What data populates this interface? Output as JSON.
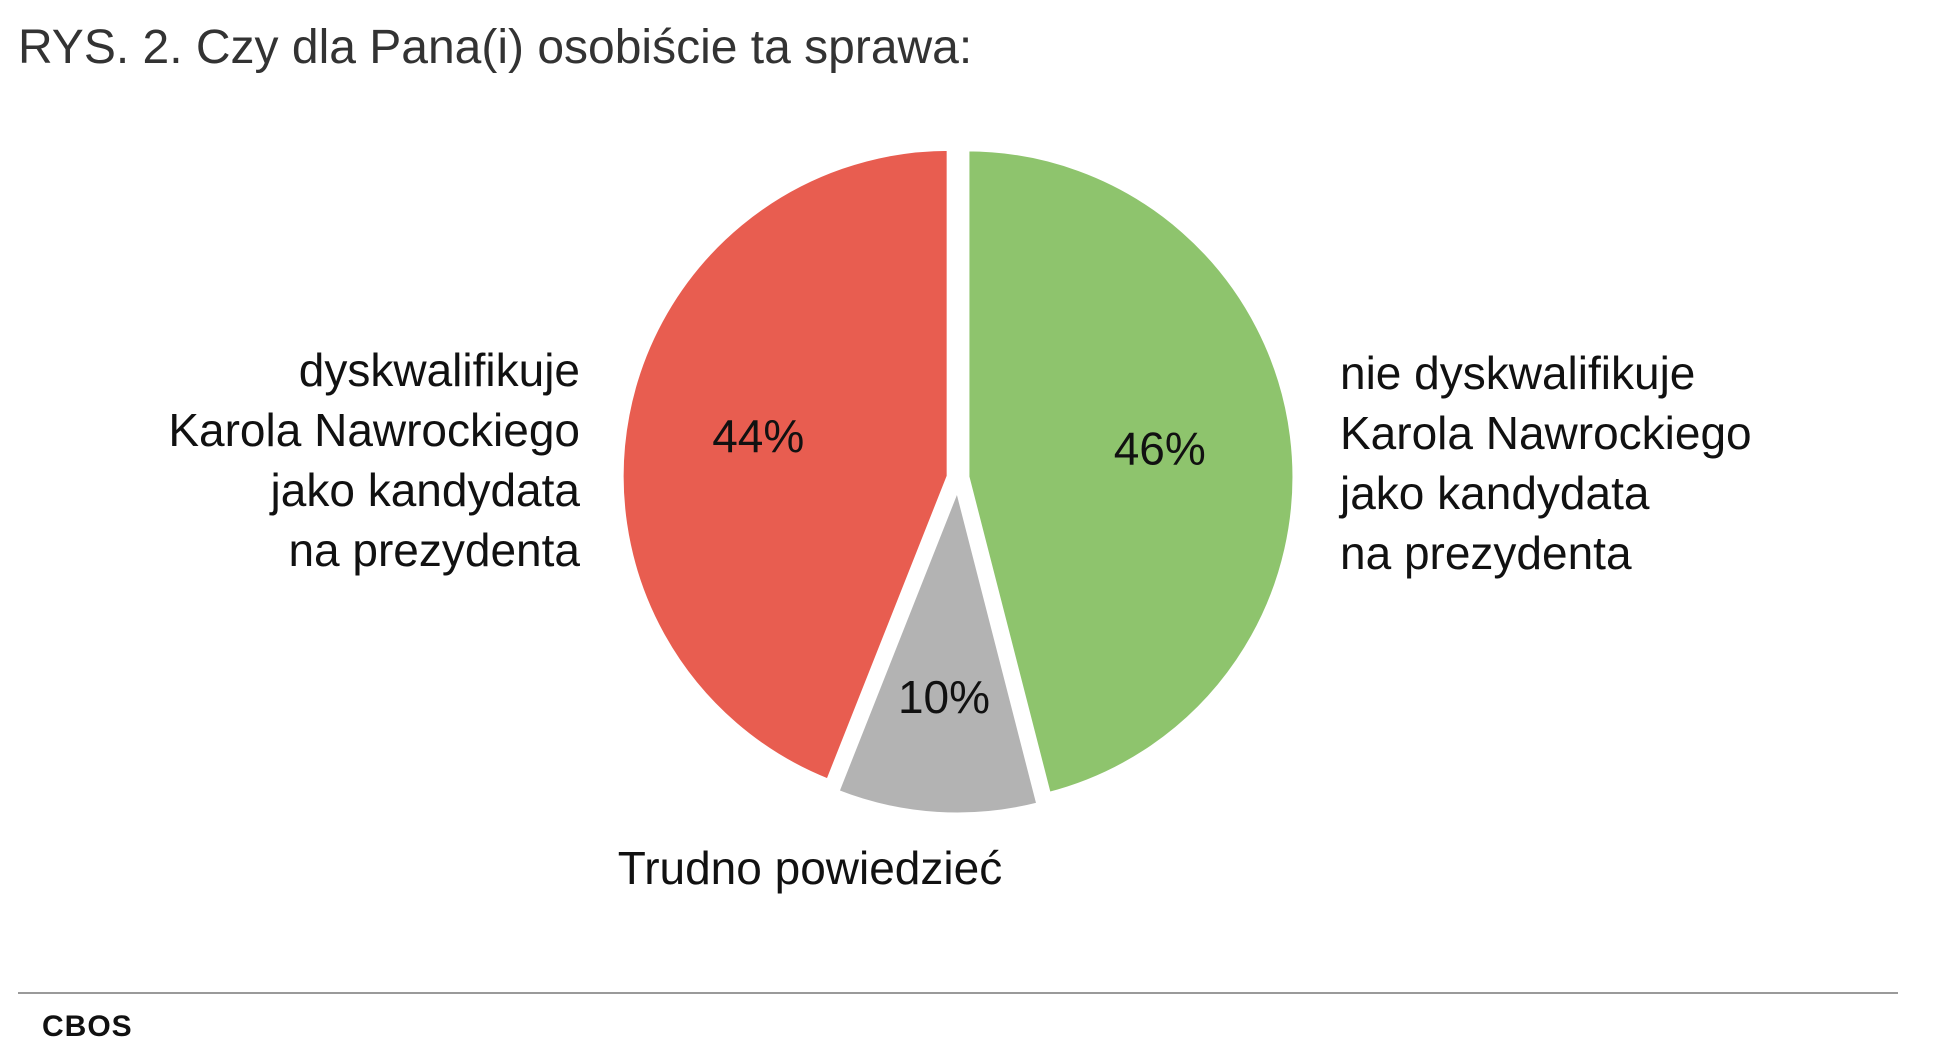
{
  "header": {
    "title": "RYS. 2. Czy dla Pana(i) osobiście ta sprawa:"
  },
  "chart_data": {
    "type": "pie",
    "title": "RYS. 2. Czy dla Pana(i) osobiście ta sprawa:",
    "slices": [
      {
        "id": "nie-dyskwalifikuje",
        "label_lines": [
          "nie dyskwalifikuje",
          "Karola Nawrockiego",
          "jako kandydata",
          "na prezydenta"
        ],
        "value": 46,
        "value_label": "46%",
        "color": "#8EC46D"
      },
      {
        "id": "trudno",
        "label_lines": [
          "Trudno powiedzieć"
        ],
        "value": 10,
        "value_label": "10%",
        "color": "#B3B3B3"
      },
      {
        "id": "dyskwalifikuje",
        "label_lines": [
          "dyskwalifikuje",
          "Karola Nawrockiego",
          "jako kandydata",
          "na prezydenta"
        ],
        "value": 44,
        "value_label": "44%",
        "color": "#E85D50"
      }
    ],
    "start": "top",
    "direction": "clockwise",
    "legend": "none"
  },
  "footer": {
    "source": "CBOS"
  }
}
